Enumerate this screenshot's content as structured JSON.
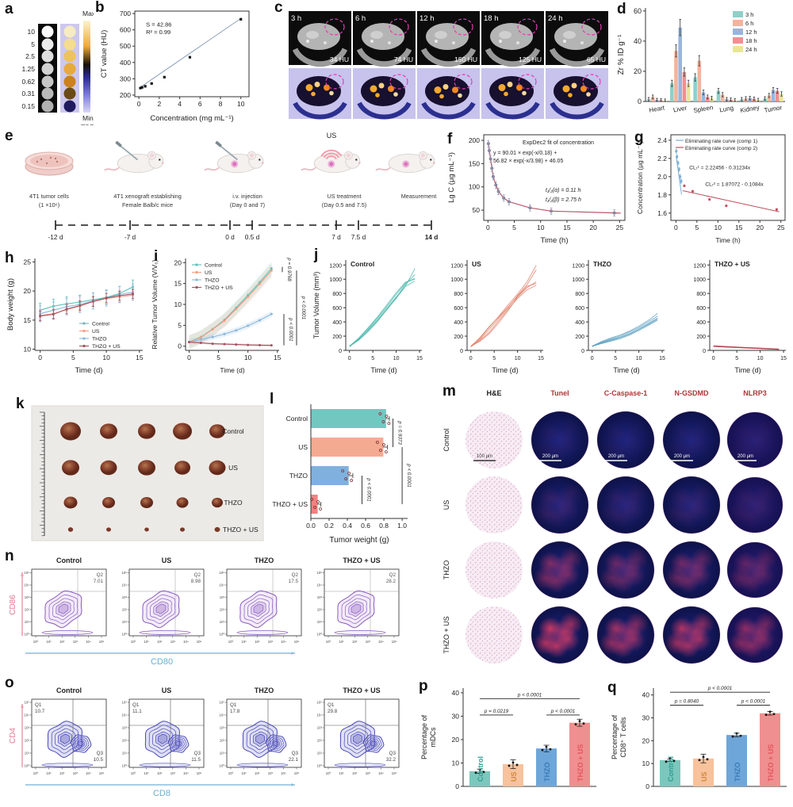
{
  "panels": {
    "a": {
      "label": "a",
      "rows": [
        "10",
        "5",
        "2.5",
        "1.25",
        "0.62",
        "0.31",
        "0.15"
      ],
      "max": "Max",
      "min": "Min",
      "unit": "mg mL⁻¹"
    },
    "b": {
      "label": "b"
    },
    "c": {
      "label": "c",
      "cells": [
        {
          "time": "3 h",
          "hu": "34 HU"
        },
        {
          "time": "6 h",
          "hu": "74 HU"
        },
        {
          "time": "12 h",
          "hu": "150 HU"
        },
        {
          "time": "18 h",
          "hu": "125 HU"
        },
        {
          "time": "24 h",
          "hu": "65 HU"
        }
      ]
    },
    "d": {
      "label": "d"
    },
    "e": {
      "label": "e",
      "us": "US",
      "stages": [
        [
          "4T1 tumor cells",
          "(1 ×10⁶)"
        ],
        [
          "4T1 xenograft establishing",
          "Female Balb/c mice"
        ],
        [
          "i.v. injection",
          "(Day 0 and 7)"
        ],
        [
          "US treatment",
          "(Day 0.5 and 7.5)"
        ],
        [
          "Measurement"
        ]
      ],
      "timeline": [
        "-12 d",
        "-7 d",
        "0 d",
        "0.5 d",
        "7 d",
        "7.5 d",
        "14 d"
      ]
    },
    "f": {
      "label": "f"
    },
    "g": {
      "label": "g"
    },
    "h": {
      "label": "h"
    },
    "i": {
      "label": "i"
    },
    "j": {
      "label": "j"
    },
    "k": {
      "label": "k",
      "rows": [
        "Control",
        "US",
        "THZO",
        "THZO + US"
      ]
    },
    "l": {
      "label": "l"
    },
    "m": {
      "label": "m",
      "columns": [
        "H&E",
        "Tunel",
        "C-Caspase-1",
        "N-GSDMD",
        "NLRP3"
      ],
      "rows": [
        "Control",
        "US",
        "THZO",
        "THZO + US"
      ],
      "scale_he": "100 μm",
      "scale_fluo": "200 μm"
    },
    "n": {
      "label": "n",
      "titles": [
        "Control",
        "US",
        "THZO",
        "THZO + US"
      ],
      "quad": "Q2",
      "values": [
        "7.01",
        "8.98",
        "17.5",
        "28.2"
      ],
      "xlabel": "CD80",
      "ylabel": "CD86",
      "ticks": [
        "10⁰",
        "10¹",
        "10²",
        "10³",
        "10⁴",
        "10⁵"
      ]
    },
    "o": {
      "label": "o",
      "titles": [
        "Control",
        "US",
        "THZO",
        "THZO + US"
      ],
      "q1": "Q1",
      "q3": "Q3",
      "q1_values": [
        "10.7",
        "11.1",
        "17.8",
        "29.8"
      ],
      "q3_values": [
        "10.5",
        "11.5",
        "22.1",
        "32.2"
      ],
      "xlabel": "CD8",
      "ylabel": "CD4"
    },
    "p": {
      "label": "p"
    },
    "q": {
      "label": "q"
    }
  },
  "chart_data": [
    {
      "panel": "b",
      "type": "scatter",
      "x": [
        0.15,
        0.31,
        0.62,
        1.25,
        2.5,
        5,
        10
      ],
      "y": [
        243,
        247,
        254,
        271,
        310,
        432,
        665
      ],
      "fit_line": {
        "x0": 0,
        "y0": 242,
        "x1": 10,
        "y1": 670
      },
      "annotations": [
        "S = 42.86",
        "R² = 0.99"
      ],
      "xlabel": "Concentration (mg mL⁻¹)",
      "ylabel": "CT value (HU)",
      "xlim": [
        -0.4,
        10.8
      ],
      "ylim": [
        190,
        715
      ],
      "xticks": [
        0,
        2,
        4,
        6,
        8,
        10
      ],
      "yticks": [
        200,
        300,
        400,
        500,
        600,
        700
      ]
    },
    {
      "panel": "d",
      "type": "bar",
      "ylabel": "Zr % ID g⁻¹",
      "ylim": [
        0,
        62
      ],
      "yticks": [
        0,
        20,
        40,
        60
      ],
      "categories": [
        "Heart",
        "Liver",
        "Spleen",
        "Lung",
        "Kidney",
        "Tumor"
      ],
      "series": [
        {
          "name": "3 h",
          "color": "#8fd0c9",
          "values": [
            1.5,
            12,
            16,
            7,
            1.5,
            2
          ]
        },
        {
          "name": "6 h",
          "color": "#f2b49c",
          "values": [
            3,
            33.5,
            27,
            4.5,
            2,
            4
          ]
        },
        {
          "name": "12 h",
          "color": "#9ab5dd",
          "values": [
            1,
            49,
            6,
            1.5,
            2.2,
            7.5
          ]
        },
        {
          "name": "18 h",
          "color": "#f28f8f",
          "values": [
            0.8,
            19.5,
            3,
            1.2,
            1.8,
            7
          ]
        },
        {
          "name": "24 h",
          "color": "#e9e795",
          "values": [
            0.6,
            12,
            2.2,
            0.8,
            1,
            5
          ]
        }
      ]
    },
    {
      "panel": "f",
      "type": "pk",
      "x": [
        0.083,
        0.25,
        0.5,
        0.75,
        1,
        1.5,
        2,
        3,
        4,
        8,
        12,
        24
      ],
      "y": [
        193,
        178,
        160,
        140,
        122,
        104,
        90,
        76,
        68,
        55,
        48,
        44
      ],
      "title": "ExpDec2 fit of concentration",
      "eq1": "y = 90.01 × exp(-x/0.18) +",
      "eq2": "56.82 × exp(-x/3.98) + 46.05",
      "t1": "t₁/₂(α) = 0.11 h",
      "t2": "t₁/₂(β) = 2.75 h",
      "ylabel": "Lg C (μg mL⁻¹)",
      "xlabel": "Time (h)",
      "ylim": [
        28,
        212
      ],
      "yticks": [
        50,
        100,
        150,
        200
      ],
      "xlim": [
        -0.8,
        26
      ],
      "xticks": [
        0,
        5,
        10,
        15,
        20,
        25
      ],
      "point_color": "#8e8eae",
      "line_color": "#b85868"
    },
    {
      "panel": "g",
      "type": "g",
      "legend": [
        "Eliminating rate curve (comp 1)",
        "Eliminating rate curve (comp 2)"
      ],
      "eq1": "CLₜ¹ = 2.22456 - 0.31234x",
      "eq2": "CLₜ² = 1.87072 - 0.1084x",
      "s1": {
        "x": [
          0.083,
          0.25,
          0.5,
          0.75,
          1,
          1.25
        ],
        "y": [
          2.28,
          2.22,
          2.15,
          2.08,
          2.0,
          1.95
        ],
        "color": "#7ab0d4"
      },
      "s2": {
        "x": [
          2,
          4,
          8,
          12,
          24
        ],
        "y": [
          1.9,
          1.84,
          1.75,
          1.68,
          1.64
        ],
        "color": "#c05060"
      },
      "ylabel": "Concentration (μg mL⁻¹)",
      "xlabel": "Time (h)",
      "ylim": [
        1.52,
        2.46
      ],
      "yticks": [
        1.6,
        1.8,
        2.0,
        2.2,
        2.4
      ],
      "xlim": [
        -1.2,
        26
      ],
      "xticks": [
        0,
        5,
        10,
        15,
        20,
        25
      ]
    },
    {
      "panel": "h",
      "type": "lines",
      "x": [
        0,
        2,
        4,
        6,
        8,
        10,
        12,
        14
      ],
      "xlabel": "Time (d)",
      "ylabel": "Body weight (g)",
      "ylim": [
        9.8,
        25.6
      ],
      "yticks": [
        10,
        15,
        20,
        25
      ],
      "xlim": [
        -0.8,
        15.5
      ],
      "xticks": [
        0,
        5,
        10,
        15
      ],
      "series": [
        {
          "name": "Control",
          "color": "#5ec0b8",
          "err": 1.2,
          "values": [
            16.7,
            17.4,
            17.8,
            18.1,
            18.5,
            18.9,
            19.6,
            20.7
          ]
        },
        {
          "name": "US",
          "color": "#f39e82",
          "err": 0.9,
          "values": [
            15.8,
            16.1,
            16.8,
            17.4,
            18.2,
            18.7,
            19.0,
            19.3
          ]
        },
        {
          "name": "THZO",
          "color": "#8ab8dc",
          "err": 1.4,
          "values": [
            16.1,
            16.7,
            17.3,
            17.7,
            18.3,
            18.8,
            19.4,
            19.8
          ]
        },
        {
          "name": "THZO + US",
          "color": "#a6515f",
          "err": 0.8,
          "values": [
            15.7,
            16.0,
            16.9,
            17.5,
            18.2,
            18.8,
            19.2,
            19.5
          ]
        }
      ]
    },
    {
      "panel": "i",
      "type": "lines",
      "x": [
        0,
        2,
        4,
        6,
        8,
        10,
        12,
        14
      ],
      "xlabel": "Time (d)",
      "ylabel": "Relative Tumor Volume (V/V₀)",
      "ylim": [
        -1,
        21
      ],
      "yticks": [
        0,
        5,
        10,
        15,
        20
      ],
      "xlim": [
        -0.6,
        15.3
      ],
      "xticks": [
        0,
        5,
        10,
        15
      ],
      "pvalues": [
        "p = 0.9768",
        "p < 0.0001",
        "p < 0.0001"
      ],
      "series": [
        {
          "name": "Control",
          "color": "#5ec0b8",
          "band": 1.6,
          "values": [
            1,
            2.2,
            4.1,
            6.3,
            9.2,
            12.2,
            15.3,
            18.6
          ]
        },
        {
          "name": "US",
          "color": "#f39e82",
          "band": 1.6,
          "values": [
            1,
            2.1,
            4.0,
            6.1,
            8.9,
            11.8,
            14.9,
            18.1
          ]
        },
        {
          "name": "THZO",
          "color": "#8ab8dc",
          "band": 0.7,
          "values": [
            1,
            1.6,
            2.2,
            2.9,
            3.8,
            4.9,
            6.2,
            7.7
          ]
        },
        {
          "name": "THZO + US",
          "color": "#a6515f",
          "band": 0.25,
          "values": [
            1,
            0.8,
            0.6,
            0.5,
            0.4,
            0.3,
            0.25,
            0.2
          ]
        }
      ]
    },
    {
      "panel": "j",
      "type": "small",
      "x": [
        0,
        2,
        4,
        6,
        8,
        10,
        12,
        14
      ],
      "xlabel": "Time (d)",
      "ylabel": "Tumor Volume (mm³)",
      "ylim": [
        0,
        1270
      ],
      "yticks": [
        0,
        200,
        400,
        600,
        800,
        1000,
        1200
      ],
      "xlim": [
        -0.8,
        15.5
      ],
      "xticks": [
        0,
        5,
        10,
        15
      ],
      "groups": [
        {
          "title": "Control",
          "color": "#4db8ac",
          "lines": [
            [
              55,
              150,
              290,
              430,
              590,
              750,
              900,
              975
            ],
            [
              60,
              175,
              320,
              470,
              640,
              810,
              960,
              1000
            ],
            [
              50,
              160,
              280,
              420,
              570,
              740,
              930,
              1065
            ],
            [
              58,
              145,
              265,
              405,
              575,
              730,
              905,
              1150
            ],
            [
              52,
              168,
              305,
              455,
              615,
              785,
              945,
              1015
            ]
          ]
        },
        {
          "title": "US",
          "color": "#e0806a",
          "lines": [
            [
              55,
              140,
              260,
              420,
              580,
              730,
              850,
              915
            ],
            [
              60,
              170,
              330,
              480,
              640,
              790,
              960,
              1195
            ],
            [
              50,
              155,
              300,
              450,
              600,
              770,
              920,
              1135
            ],
            [
              57,
              130,
              240,
              390,
              560,
              750,
              880,
              965
            ],
            [
              53,
              185,
              340,
              470,
              610,
              760,
              900,
              940
            ]
          ]
        },
        {
          "title": "THZO",
          "color": "#5b9fc0",
          "lines": [
            [
              60,
              95,
              130,
              165,
              215,
              280,
              350,
              425
            ],
            [
              55,
              105,
              150,
              185,
              235,
              300,
              375,
              455
            ],
            [
              62,
              115,
              160,
              200,
              255,
              320,
              400,
              480
            ],
            [
              58,
              125,
              175,
              215,
              270,
              340,
              420,
              520
            ],
            [
              56,
              100,
              140,
              180,
              230,
              295,
              365,
              440
            ]
          ]
        },
        {
          "title": "THZO + US",
          "color": "#b04a52",
          "lines": [
            [
              60,
              52,
              46,
              40,
              34,
              28,
              22,
              15
            ],
            [
              65,
              58,
              50,
              44,
              38,
              32,
              26,
              20
            ],
            [
              55,
              48,
              42,
              36,
              30,
              24,
              18,
              12
            ],
            [
              62,
              55,
              48,
              42,
              36,
              30,
              24,
              18
            ],
            [
              58,
              50,
              44,
              38,
              32,
              26,
              20,
              14
            ]
          ]
        }
      ]
    },
    {
      "panel": "l",
      "type": "hbar",
      "categories": [
        "Control",
        "US",
        "THZO",
        "THZO + US"
      ],
      "values": [
        0.82,
        0.79,
        0.41,
        0.07
      ],
      "errs": [
        0.04,
        0.05,
        0.05,
        0.04
      ],
      "colors": [
        "#5ec0b8",
        "#f39e82",
        "#6ea6d9",
        "#ef6f6f"
      ],
      "xlabel": "Tumor weight (g)",
      "xlim": [
        0,
        1.06
      ],
      "xticks": [
        0,
        0.2,
        0.4,
        0.6,
        0.8,
        1.0
      ],
      "pvalues": [
        "p = 0.9373",
        "p < 0.0001",
        "p < 0.0001"
      ]
    },
    {
      "panel": "p",
      "type": "vbar",
      "categories": [
        "Control",
        "US",
        "THZO",
        "THZO + US"
      ],
      "values": [
        6.5,
        9.5,
        16.2,
        27.2
      ],
      "errs": [
        0.9,
        1.9,
        1.4,
        1.5
      ],
      "colors": [
        "#7cc7bd",
        "#f7c29c",
        "#6ea6d9",
        "#f08f8f"
      ],
      "label_colors": [
        "#2f9e92",
        "#cf8a3a",
        "#3c7cb8",
        "#e2575f"
      ],
      "ylabel1": "Percentage of",
      "ylabel2": "mDCs",
      "ylim": [
        0,
        42
      ],
      "yticks": [
        0,
        10,
        20,
        30,
        40
      ],
      "pvalues": [
        "p = 0.0219",
        "p < 0.0001",
        "p < 0.0001"
      ]
    },
    {
      "panel": "q",
      "type": "vbar",
      "categories": [
        "Control",
        "US",
        "THZO",
        "THZO + US"
      ],
      "values": [
        11.5,
        12.2,
        22.5,
        32
      ],
      "errs": [
        0.5,
        1.9,
        0.8,
        0.8
      ],
      "colors": [
        "#7cc7bd",
        "#f7c29c",
        "#6ea6d9",
        "#f08f8f"
      ],
      "label_colors": [
        "#2f9e92",
        "#cf8a3a",
        "#3c7cb8",
        "#e2575f"
      ],
      "ylabel1": "Percentage of",
      "ylabel2": "CD8⁺ T cells",
      "ylim": [
        0,
        43
      ],
      "yticks": [
        0,
        10,
        20,
        30,
        40
      ],
      "pvalues": [
        "p = 0.8040",
        "p < 0.0001",
        "p < 0.0001"
      ]
    }
  ]
}
